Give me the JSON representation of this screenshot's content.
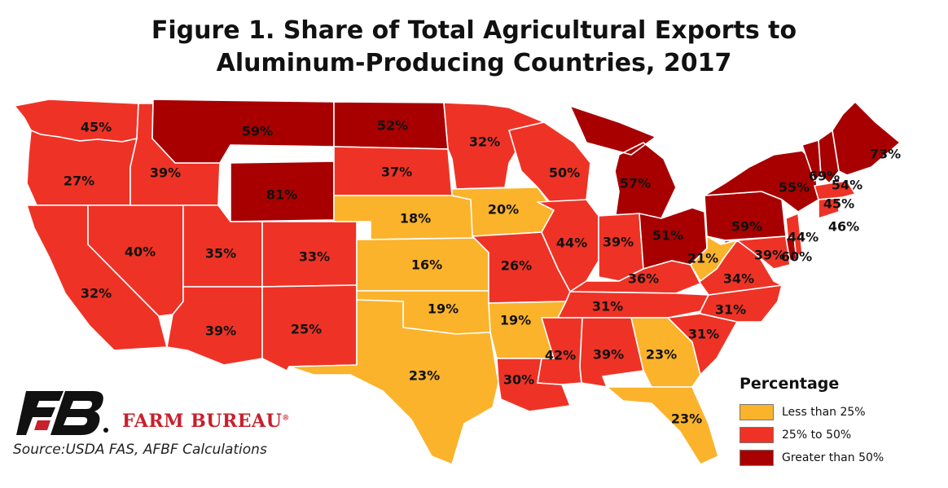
{
  "title_line1": "Figure 1. Share of Total Agricultural Exports to",
  "title_line2": "Aluminum-Producing Countries, 2017",
  "legend": {
    "title": "Percentage",
    "items": [
      {
        "label": "Less than 25%",
        "color": "#fbb32c"
      },
      {
        "label": "25% to 50%",
        "color": "#ee3326"
      },
      {
        "label": "Greater than 50%",
        "color": "#a80000"
      }
    ]
  },
  "brand": "FARM BUREAU",
  "brand_mark": "®",
  "source": "Source:USDA FAS, AFBF Calculations",
  "colors": {
    "low": "#fbb32c",
    "mid": "#ee3326",
    "high": "#a80000"
  },
  "map_data": {
    "type": "choropleth",
    "unit": "percent",
    "states": [
      {
        "state": "WA",
        "value": 45,
        "label": "45%"
      },
      {
        "state": "OR",
        "value": 27,
        "label": "27%"
      },
      {
        "state": "CA",
        "value": 32,
        "label": "32%"
      },
      {
        "state": "NV",
        "value": 40,
        "label": "40%"
      },
      {
        "state": "ID",
        "value": 39,
        "label": "39%"
      },
      {
        "state": "MT",
        "value": 59,
        "label": "59%"
      },
      {
        "state": "WY",
        "value": 81,
        "label": "81%"
      },
      {
        "state": "UT",
        "value": 35,
        "label": "35%"
      },
      {
        "state": "AZ",
        "value": 39,
        "label": "39%"
      },
      {
        "state": "CO",
        "value": 33,
        "label": "33%"
      },
      {
        "state": "NM",
        "value": 25,
        "label": "25%"
      },
      {
        "state": "ND",
        "value": 52,
        "label": "52%"
      },
      {
        "state": "SD",
        "value": 37,
        "label": "37%"
      },
      {
        "state": "NE",
        "value": 18,
        "label": "18%"
      },
      {
        "state": "KS",
        "value": 16,
        "label": "16%"
      },
      {
        "state": "OK",
        "value": 19,
        "label": "19%"
      },
      {
        "state": "TX",
        "value": 23,
        "label": "23%"
      },
      {
        "state": "MN",
        "value": 32,
        "label": "32%"
      },
      {
        "state": "IA",
        "value": 20,
        "label": "20%"
      },
      {
        "state": "MO",
        "value": 26,
        "label": "26%"
      },
      {
        "state": "AR",
        "value": 19,
        "label": "19%"
      },
      {
        "state": "LA",
        "value": 30,
        "label": "30%"
      },
      {
        "state": "WI",
        "value": 50,
        "label": "50%"
      },
      {
        "state": "IL",
        "value": 44,
        "label": "44%"
      },
      {
        "state": "MI",
        "value": 57,
        "label": "57%"
      },
      {
        "state": "IN",
        "value": 39,
        "label": "39%"
      },
      {
        "state": "OH",
        "value": 51,
        "label": "51%"
      },
      {
        "state": "KY",
        "value": 36,
        "label": "36%"
      },
      {
        "state": "TN",
        "value": 31,
        "label": "31%"
      },
      {
        "state": "MS",
        "value": 42,
        "label": "42%"
      },
      {
        "state": "AL",
        "value": 39,
        "label": "39%"
      },
      {
        "state": "GA",
        "value": 23,
        "label": "23%"
      },
      {
        "state": "FL",
        "value": 23,
        "label": "23%"
      },
      {
        "state": "SC",
        "value": 31,
        "label": "31%"
      },
      {
        "state": "NC",
        "value": 31,
        "label": "31%"
      },
      {
        "state": "VA",
        "value": 34,
        "label": "34%"
      },
      {
        "state": "WV",
        "value": 21,
        "label": "21%"
      },
      {
        "state": "PA",
        "value": 59,
        "label": "59%"
      },
      {
        "state": "NY",
        "value": 55,
        "label": "55%"
      },
      {
        "state": "VT",
        "value": 69,
        "label": "69%"
      },
      {
        "state": "NH",
        "value": 54,
        "label": "54%"
      },
      {
        "state": "ME",
        "value": 73,
        "label": "73%"
      },
      {
        "state": "MA",
        "value": 45,
        "label": "45%"
      },
      {
        "state": "CT",
        "value": 46,
        "label": "46%"
      },
      {
        "state": "NJ",
        "value": 44,
        "label": "44%"
      },
      {
        "state": "MD",
        "value": 39,
        "label": "39%"
      },
      {
        "state": "DE",
        "value": 60,
        "label": "60%"
      }
    ]
  }
}
